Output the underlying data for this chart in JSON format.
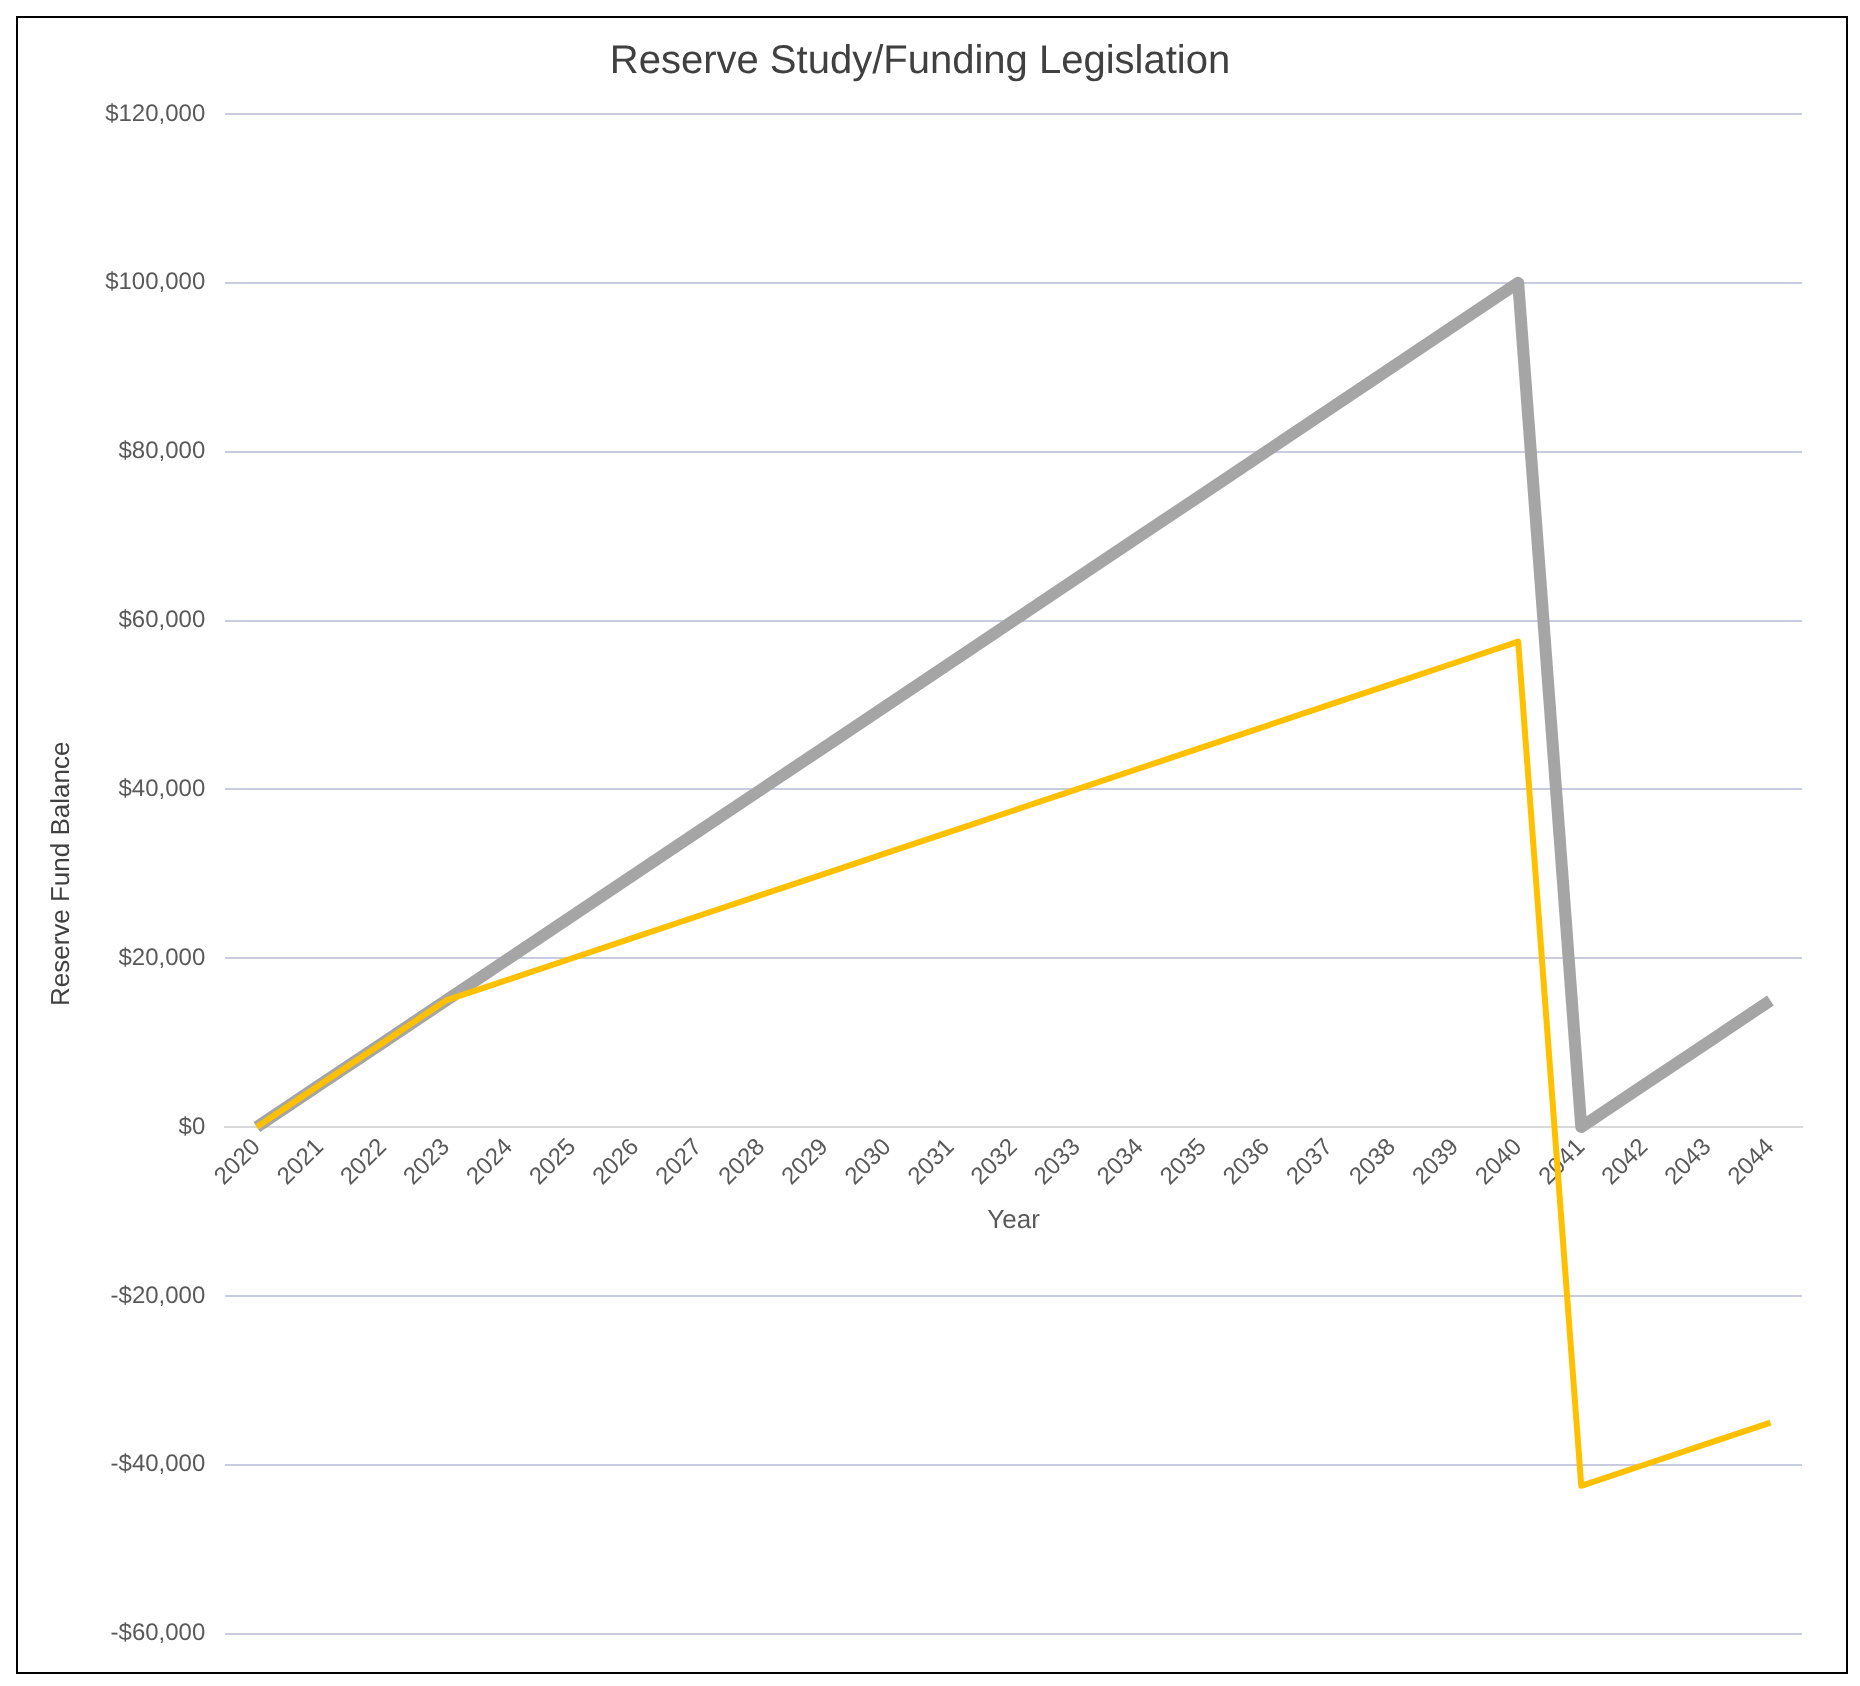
{
  "chart_data": {
    "type": "line",
    "title": "Reserve Study/Funding Legislation",
    "xlabel": "Year",
    "ylabel": "Reserve Fund Balance",
    "categories": [
      "2020",
      "2021",
      "2022",
      "2023",
      "2024",
      "2025",
      "2026",
      "2027",
      "2028",
      "2029",
      "2030",
      "2031",
      "2032",
      "2033",
      "2034",
      "2035",
      "2036",
      "2037",
      "2038",
      "2039",
      "2040",
      "2041",
      "2042",
      "2043",
      "2044"
    ],
    "series": [
      {
        "color": "#a5a5a5",
        "values": [
          0,
          5000,
          10000,
          15000,
          20000,
          25000,
          30000,
          35000,
          40000,
          45000,
          50000,
          55000,
          60000,
          65000,
          70000,
          75000,
          80000,
          85000,
          90000,
          95000,
          100000,
          0,
          5000,
          10000,
          15000
        ]
      },
      {
        "color": "#ffc000",
        "values": [
          0,
          5000,
          10000,
          15000,
          17500,
          20000,
          22500,
          25000,
          27500,
          30000,
          32500,
          35000,
          37500,
          40000,
          42500,
          45000,
          47500,
          50000,
          52500,
          55000,
          57500,
          -42500,
          -40000,
          -37500,
          -35000
        ]
      }
    ],
    "ylim": [
      -60000,
      120000
    ],
    "yticks": [
      {
        "value": -60000,
        "label": "-$60,000"
      },
      {
        "value": -40000,
        "label": "-$40,000"
      },
      {
        "value": -20000,
        "label": "-$20,000"
      },
      {
        "value": 0,
        "label": "$0"
      },
      {
        "value": 20000,
        "label": "$20,000"
      },
      {
        "value": 40000,
        "label": "$40,000"
      },
      {
        "value": 60000,
        "label": "$60,000"
      },
      {
        "value": 80000,
        "label": "$80,000"
      },
      {
        "value": 100000,
        "label": "$100,000"
      },
      {
        "value": 120000,
        "label": "$120,000"
      }
    ],
    "grid": "y",
    "legend": false,
    "marker": "none",
    "line_style": "solid"
  }
}
